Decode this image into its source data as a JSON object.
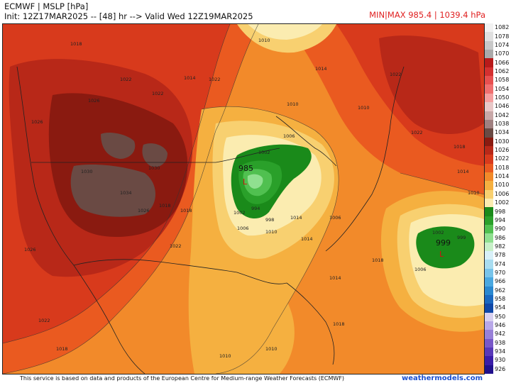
{
  "header": {
    "title": "ECMWF | MSLP [hPa]",
    "init_line": "Init: 12Z17MAR2025 -- [48] hr --> Valid Wed 12Z19MAR2025",
    "minmax": "MIN|MAX 985.4 | 1039.4 hPa"
  },
  "footer": {
    "credit": "This service is based on data and products of the European Centre for Medium-range Weather Forecasts (ECMWF)",
    "site": "weathermodels.com"
  },
  "colors": {
    "title_text": "#111111",
    "minmax_text": "#e02020",
    "site_link": "#1a4fd0",
    "low_marker": "#d01010"
  },
  "legend": [
    {
      "label": "1082",
      "color": "#f2f2f2"
    },
    {
      "label": "1078",
      "color": "#e0e0e0"
    },
    {
      "label": "1074",
      "color": "#c8c8c8"
    },
    {
      "label": "1070",
      "color": "#aaaaaa"
    },
    {
      "label": "1066",
      "color": "#b81a1a"
    },
    {
      "label": "1062",
      "color": "#d43030"
    },
    {
      "label": "1058",
      "color": "#e85050"
    },
    {
      "label": "1054",
      "color": "#f07070"
    },
    {
      "label": "1050",
      "color": "#f5a0a0"
    },
    {
      "label": "1046",
      "color": "#e8c8c8"
    },
    {
      "label": "1042",
      "color": "#c8a8a8"
    },
    {
      "label": "1038",
      "color": "#a08080"
    },
    {
      "label": "1034",
      "color": "#6a4a44"
    },
    {
      "label": "1030",
      "color": "#8a1a10"
    },
    {
      "label": "1026",
      "color": "#b82818"
    },
    {
      "label": "1022",
      "color": "#d83a1c"
    },
    {
      "label": "1018",
      "color": "#ea5a20"
    },
    {
      "label": "1014",
      "color": "#f28a2a"
    },
    {
      "label": "1010",
      "color": "#f5b040"
    },
    {
      "label": "1006",
      "color": "#f8d070"
    },
    {
      "label": "1002",
      "color": "#fbecb0"
    },
    {
      "label": "998",
      "color": "#1a8a1a"
    },
    {
      "label": "994",
      "color": "#2aa02a"
    },
    {
      "label": "990",
      "color": "#50c050"
    },
    {
      "label": "986",
      "color": "#90e090"
    },
    {
      "label": "982",
      "color": "#c8f0c8"
    },
    {
      "label": "978",
      "color": "#d8f0f8"
    },
    {
      "label": "974",
      "color": "#a8dcf0"
    },
    {
      "label": "970",
      "color": "#78c4ea"
    },
    {
      "label": "966",
      "color": "#4aa8e0"
    },
    {
      "label": "962",
      "color": "#2a88d0"
    },
    {
      "label": "958",
      "color": "#1a68c0"
    },
    {
      "label": "954",
      "color": "#1048a8"
    },
    {
      "label": "950",
      "color": "#d8d0f0"
    },
    {
      "label": "946",
      "color": "#b8a8e8"
    },
    {
      "label": "942",
      "color": "#9880d8"
    },
    {
      "label": "938",
      "color": "#7858c8"
    },
    {
      "label": "934",
      "color": "#5838b8"
    },
    {
      "label": "930",
      "color": "#3a1ca8"
    },
    {
      "label": "926",
      "color": "#20108c"
    }
  ],
  "isobar_labels": [
    "1018",
    "1022",
    "1026",
    "1026",
    "1030",
    "1030",
    "1034",
    "1026",
    "1022",
    "1018",
    "1022",
    "1014",
    "1022",
    "1010",
    "1014",
    "1010",
    "1006",
    "1002",
    "998",
    "994",
    "1002",
    "1006",
    "1010",
    "1014",
    "1014",
    "1018",
    "1018",
    "1022",
    "1026",
    "1022",
    "1022",
    "1018",
    "1014",
    "1010",
    "1006",
    "1002",
    "999",
    "1006",
    "1014",
    "1018",
    "1018",
    "1010",
    "1010",
    "1010"
  ],
  "centers": {
    "low_main_value": "985",
    "low_main_marker": "L",
    "low_atlantic_value": "999",
    "low_atlantic_marker": "L"
  }
}
